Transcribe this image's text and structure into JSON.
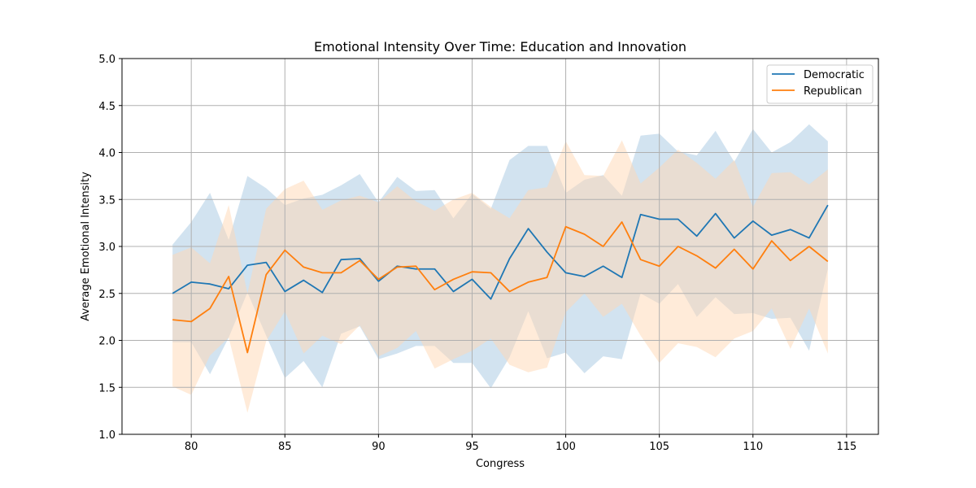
{
  "chart_data": {
    "type": "line",
    "title": "Emotional Intensity Over Time: Education and Innovation",
    "xlabel": "Congress",
    "ylabel": "Average Emotional Intensity",
    "xlim": [
      76.3,
      116.7
    ],
    "ylim": [
      1.0,
      5.0
    ],
    "xticks": [
      80,
      85,
      90,
      95,
      100,
      105,
      110,
      115
    ],
    "yticks": [
      1.0,
      1.5,
      2.0,
      2.5,
      3.0,
      3.5,
      4.0,
      4.5,
      5.0
    ],
    "grid": true,
    "legend_position": "top-right",
    "x": [
      79,
      80,
      81,
      82,
      83,
      84,
      85,
      86,
      87,
      88,
      89,
      90,
      91,
      92,
      93,
      94,
      95,
      96,
      97,
      98,
      99,
      100,
      101,
      102,
      103,
      104,
      105,
      106,
      107,
      108,
      109,
      110,
      111,
      112,
      113,
      114
    ],
    "series": [
      {
        "name": "Democratic",
        "color": "#1f77b4",
        "band_color": "#a6c8e2",
        "values": [
          2.5,
          2.62,
          2.6,
          2.55,
          2.8,
          2.83,
          2.52,
          2.64,
          2.51,
          2.86,
          2.87,
          2.63,
          2.79,
          2.76,
          2.76,
          2.52,
          2.65,
          2.44,
          2.87,
          3.19,
          2.94,
          2.72,
          2.68,
          2.79,
          2.67,
          3.34,
          3.29,
          3.29,
          3.11,
          3.35,
          3.09,
          3.27,
          3.12,
          3.18,
          3.09,
          3.44
        ],
        "upper": [
          3.02,
          3.26,
          3.57,
          3.07,
          3.75,
          3.62,
          3.44,
          3.51,
          3.55,
          3.65,
          3.77,
          3.47,
          3.74,
          3.59,
          3.6,
          3.3,
          3.56,
          3.4,
          3.92,
          4.07,
          4.07,
          3.57,
          3.71,
          3.76,
          3.54,
          4.18,
          4.2,
          4.01,
          3.97,
          4.23,
          3.9,
          4.25,
          4.0,
          4.11,
          4.3,
          4.12
        ],
        "lower": [
          1.98,
          1.98,
          1.64,
          2.03,
          2.51,
          2.05,
          1.6,
          1.78,
          1.5,
          2.07,
          2.15,
          1.8,
          1.86,
          1.94,
          1.94,
          1.76,
          1.76,
          1.49,
          1.82,
          2.31,
          1.81,
          1.87,
          1.65,
          1.83,
          1.8,
          2.5,
          2.39,
          2.6,
          2.25,
          2.46,
          2.28,
          2.29,
          2.23,
          2.24,
          1.89,
          2.76
        ]
      },
      {
        "name": "Republican",
        "color": "#ff7f0e",
        "band_color": "#ffd8b4",
        "values": [
          2.22,
          2.2,
          2.34,
          2.68,
          1.87,
          2.7,
          2.96,
          2.78,
          2.72,
          2.72,
          2.85,
          2.65,
          2.78,
          2.79,
          2.54,
          2.65,
          2.73,
          2.72,
          2.52,
          2.62,
          2.67,
          3.21,
          3.13,
          3.0,
          3.26,
          2.86,
          2.79,
          3.0,
          2.9,
          2.77,
          2.97,
          2.76,
          3.06,
          2.85,
          3.0,
          2.84
        ],
        "upper": [
          2.91,
          2.99,
          2.82,
          3.44,
          2.5,
          3.4,
          3.61,
          3.7,
          3.39,
          3.49,
          3.54,
          3.47,
          3.64,
          3.48,
          3.38,
          3.5,
          3.57,
          3.42,
          3.3,
          3.6,
          3.63,
          4.12,
          3.76,
          3.75,
          4.13,
          3.67,
          3.84,
          4.03,
          3.89,
          3.72,
          3.92,
          3.42,
          3.78,
          3.79,
          3.66,
          3.82
        ],
        "lower": [
          1.51,
          1.42,
          1.84,
          2.03,
          1.23,
          1.99,
          2.31,
          1.86,
          2.05,
          1.96,
          2.16,
          1.83,
          1.92,
          2.1,
          1.7,
          1.8,
          1.89,
          2.02,
          1.74,
          1.66,
          1.71,
          2.3,
          2.5,
          2.25,
          2.39,
          2.05,
          1.76,
          1.97,
          1.93,
          1.82,
          2.02,
          2.1,
          2.34,
          1.91,
          2.34,
          1.86
        ]
      }
    ]
  }
}
